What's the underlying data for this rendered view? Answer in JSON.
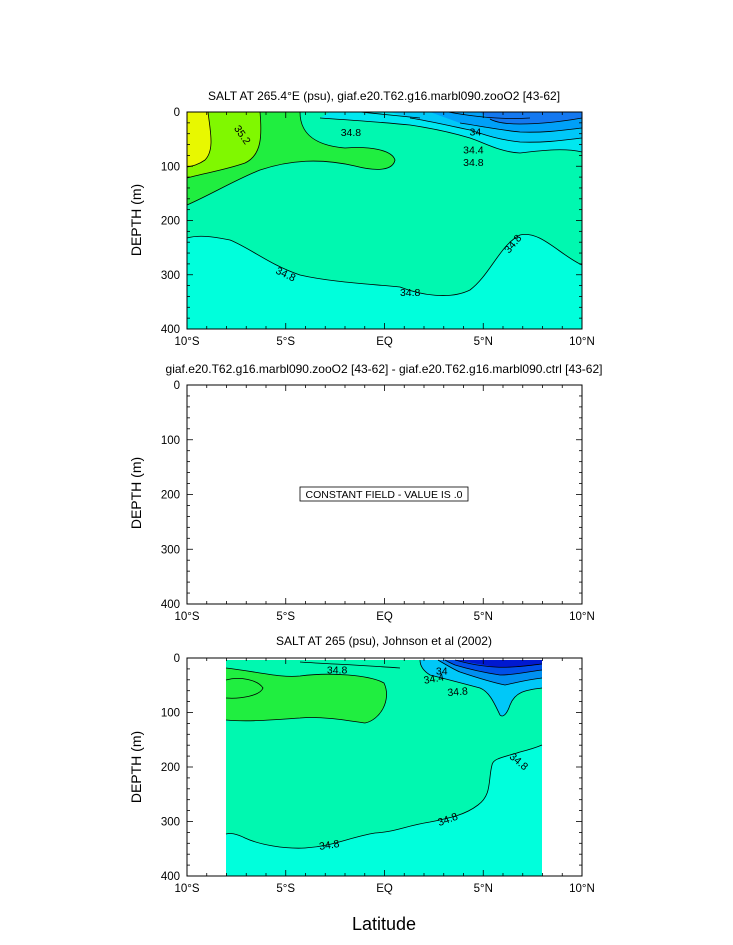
{
  "figure": {
    "xlabel": "Latitude"
  },
  "chart_data": [
    {
      "type": "heatmap",
      "title": "SALT AT 265.4°E (psu), giaf.e20.T62.g16.marbl090.zooO2 [43-62]",
      "ylabel": "DEPTH (m)",
      "xlim": [
        -10,
        10
      ],
      "ylim": [
        0,
        400
      ],
      "y_inverted": true,
      "x_tick_labels": [
        "10°S",
        "5°S",
        "EQ",
        "5°N",
        "10°N"
      ],
      "x_ticks": [
        -10,
        -5,
        0,
        5,
        10
      ],
      "y_tick_labels": [
        "0",
        "100",
        "200",
        "300",
        "400"
      ],
      "y_ticks": [
        0,
        100,
        200,
        300,
        400
      ],
      "contour_levels": [
        33.6,
        33.8,
        34.0,
        34.2,
        34.4,
        34.6,
        34.8,
        35.0,
        35.2,
        35.4
      ],
      "contour_labels": [
        {
          "text": "35.2",
          "x": -7.2,
          "y": 42,
          "rot": 55
        },
        {
          "text": "34.8",
          "x": -1.7,
          "y": 38,
          "rot": 0
        },
        {
          "text": "34",
          "x": 4.6,
          "y": 37,
          "rot": 0
        },
        {
          "text": "34.4",
          "x": 4.5,
          "y": 70,
          "rot": 0
        },
        {
          "text": "34.8",
          "x": 4.5,
          "y": 93,
          "rot": 0
        },
        {
          "text": "34.8",
          "x": -5.0,
          "y": 299,
          "rot": 25
        },
        {
          "text": "34.8",
          "x": 1.3,
          "y": 333,
          "rot": 0
        },
        {
          "text": "34.8",
          "x": 6.5,
          "y": 243,
          "rot": -50
        }
      ],
      "colors": {
        "deep": "#00ffdc",
        "mid": "#00f8b0",
        "salty1": "#20ee40",
        "salty2": "#80f800",
        "salty3": "#e8f800",
        "fresh1": "#00e8f0",
        "fresh2": "#00c8f8",
        "fresh3": "#00a0f8",
        "fresh4": "#1478f0"
      }
    },
    {
      "type": "heatmap",
      "title": "giaf.e20.T62.g16.marbl090.zooO2 [43-62] - giaf.e20.T62.g16.marbl090.ctrl [43-62]",
      "ylabel": "DEPTH (m)",
      "xlim": [
        -10,
        10
      ],
      "ylim": [
        0,
        400
      ],
      "y_inverted": true,
      "x_tick_labels": [
        "10°S",
        "5°S",
        "EQ",
        "5°N",
        "10°N"
      ],
      "x_ticks": [
        -10,
        -5,
        0,
        5,
        10
      ],
      "y_tick_labels": [
        "0",
        "100",
        "200",
        "300",
        "400"
      ],
      "y_ticks": [
        0,
        100,
        200,
        300,
        400
      ],
      "annotation": "CONSTANT FIELD - VALUE IS .0"
    },
    {
      "type": "heatmap",
      "title": "SALT AT 265 (psu), Johnson et al (2002)",
      "ylabel": "DEPTH (m)",
      "xlim": [
        -10,
        10
      ],
      "ylim": [
        0,
        400
      ],
      "data_xlim": [
        -8,
        8
      ],
      "data_ylim": [
        5,
        400
      ],
      "y_inverted": true,
      "x_tick_labels": [
        "10°S",
        "5°S",
        "EQ",
        "5°N",
        "10°N"
      ],
      "x_ticks": [
        -10,
        -5,
        0,
        5,
        10
      ],
      "y_tick_labels": [
        "0",
        "100",
        "200",
        "300",
        "400"
      ],
      "y_ticks": [
        0,
        100,
        200,
        300,
        400
      ],
      "contour_levels": [
        33.4,
        33.6,
        33.8,
        34.0,
        34.2,
        34.4,
        34.6,
        34.8,
        35.0
      ],
      "contour_labels": [
        {
          "text": "34.8",
          "x": -2.4,
          "y": 22,
          "rot": 0
        },
        {
          "text": "34",
          "x": 2.9,
          "y": 24,
          "rot": 0
        },
        {
          "text": "34.4",
          "x": 2.5,
          "y": 38,
          "rot": -10
        },
        {
          "text": "34.8",
          "x": 3.7,
          "y": 62,
          "rot": -5
        },
        {
          "text": "34.8",
          "x": -2.8,
          "y": 343,
          "rot": -8
        },
        {
          "text": "34.8",
          "x": 3.2,
          "y": 296,
          "rot": -20
        },
        {
          "text": "34.8",
          "x": 6.8,
          "y": 190,
          "rot": 40
        }
      ],
      "colors": {
        "deep": "#00ffdc",
        "mid": "#00f8b0",
        "salty1": "#20ee40",
        "fresh1": "#00c8f8",
        "fresh2": "#0090f0",
        "fresh3": "#0050e8",
        "fresh4": "#0018d0"
      }
    }
  ]
}
